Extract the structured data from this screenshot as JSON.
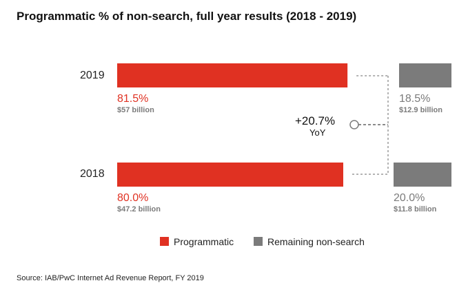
{
  "chart_data": {
    "type": "bar",
    "title": "Programmatic % of non-search, full year results (2018 - 2019)",
    "categories": [
      "2019",
      "2018"
    ],
    "series": [
      {
        "name": "Programmatic",
        "color": "#e03122",
        "values": [
          81.5,
          80.0
        ],
        "labels": [
          "81.5%",
          "80.0%"
        ],
        "amounts": [
          "$57 billion",
          "$47.2 billion"
        ]
      },
      {
        "name": "Remaining non-search",
        "color": "#7b7b7b",
        "values": [
          18.5,
          20.0
        ],
        "labels": [
          "18.5%",
          "20.0%"
        ],
        "amounts": [
          "$12.9 billion",
          "$11.8 billion"
        ]
      }
    ],
    "annotation": {
      "value": "+20.7%",
      "label": "YoY"
    },
    "source": "Source: IAB/PwC Internet Ad Revenue Report, FY 2019",
    "legend_position": "bottom"
  }
}
